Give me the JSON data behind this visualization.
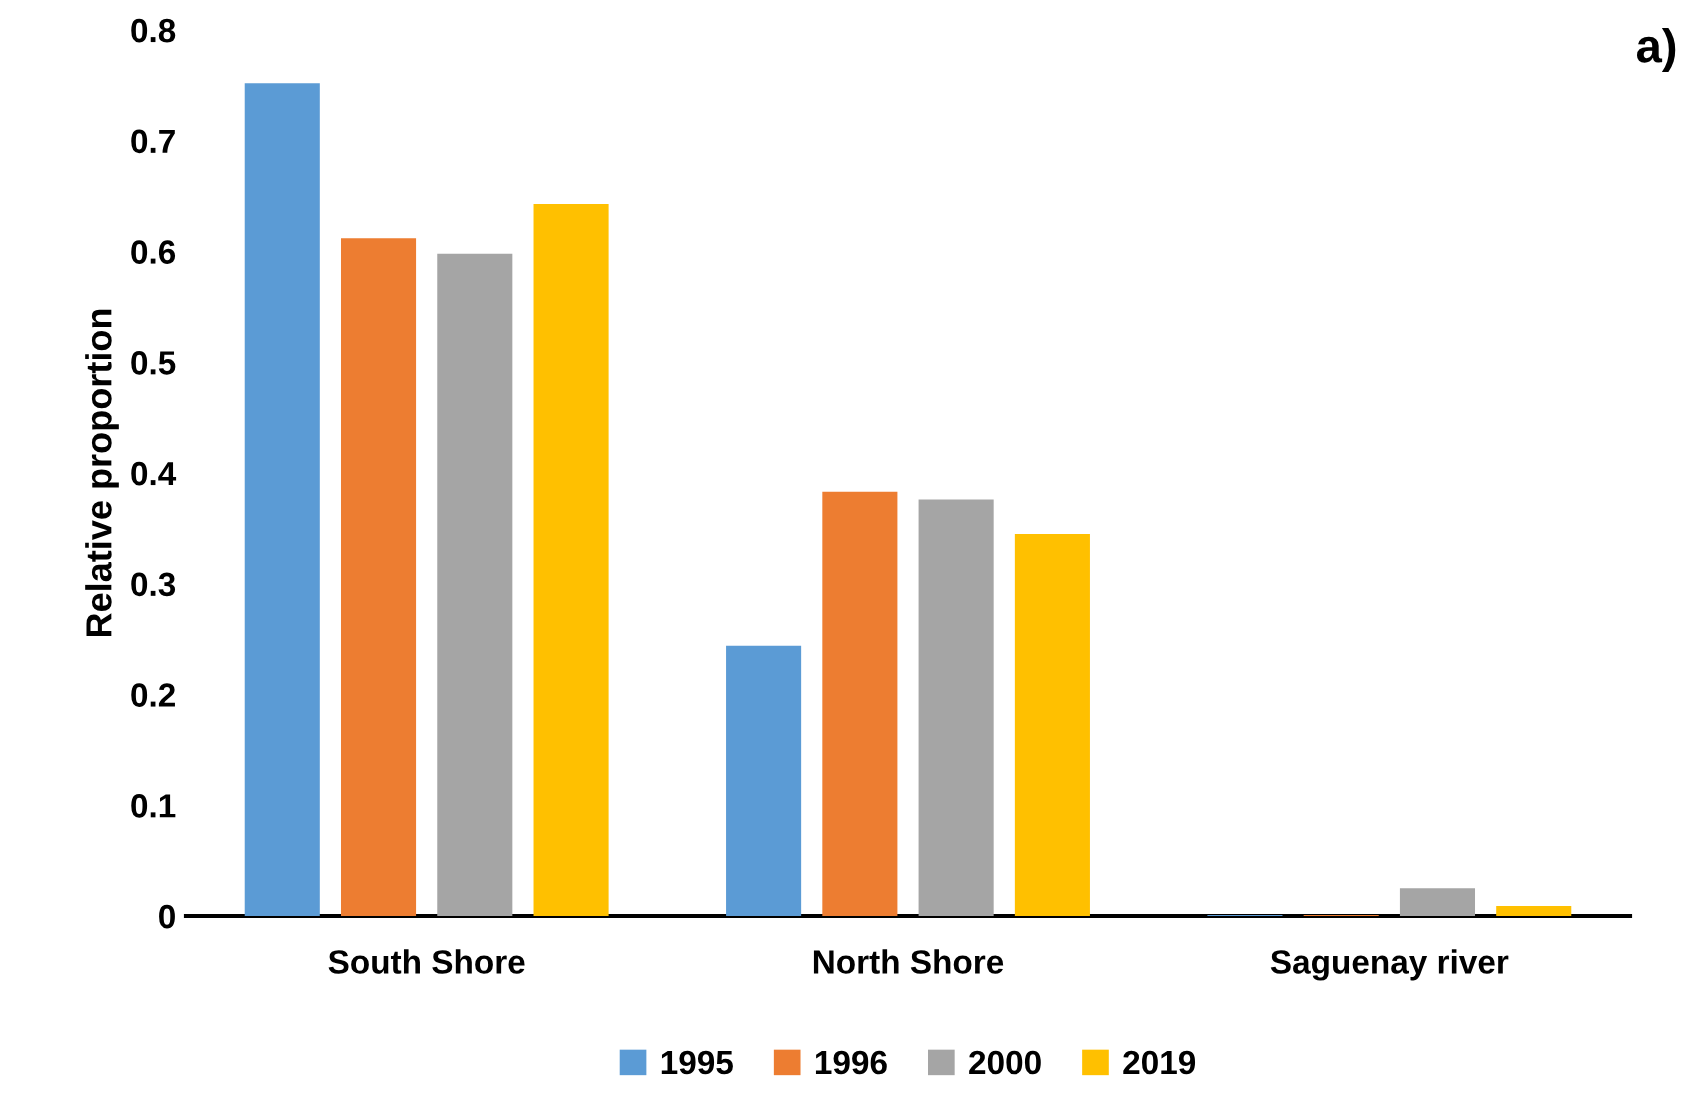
{
  "chart_data": {
    "type": "bar",
    "ylabel": "Relative proportion",
    "annotations": [
      "a)"
    ],
    "categories": [
      "South Shore",
      "North Shore",
      "Saguenay river"
    ],
    "series": [
      {
        "name": "1995",
        "color": "#5b9bd5",
        "values": [
          0.752,
          0.244,
          0.001
        ]
      },
      {
        "name": "1996",
        "color": "#ed7d31",
        "values": [
          0.612,
          0.383,
          0.001
        ]
      },
      {
        "name": "2000",
        "color": "#a5a5a5",
        "values": [
          0.598,
          0.376,
          0.025
        ]
      },
      {
        "name": "2019",
        "color": "#ffc000",
        "values": [
          0.643,
          0.345,
          0.009
        ]
      }
    ],
    "ylim": [
      0,
      0.8
    ],
    "yticks": [
      0,
      0.1,
      0.2,
      0.3,
      0.4,
      0.5,
      0.6,
      0.7,
      0.8
    ],
    "grid": false,
    "legend": "bottom"
  }
}
